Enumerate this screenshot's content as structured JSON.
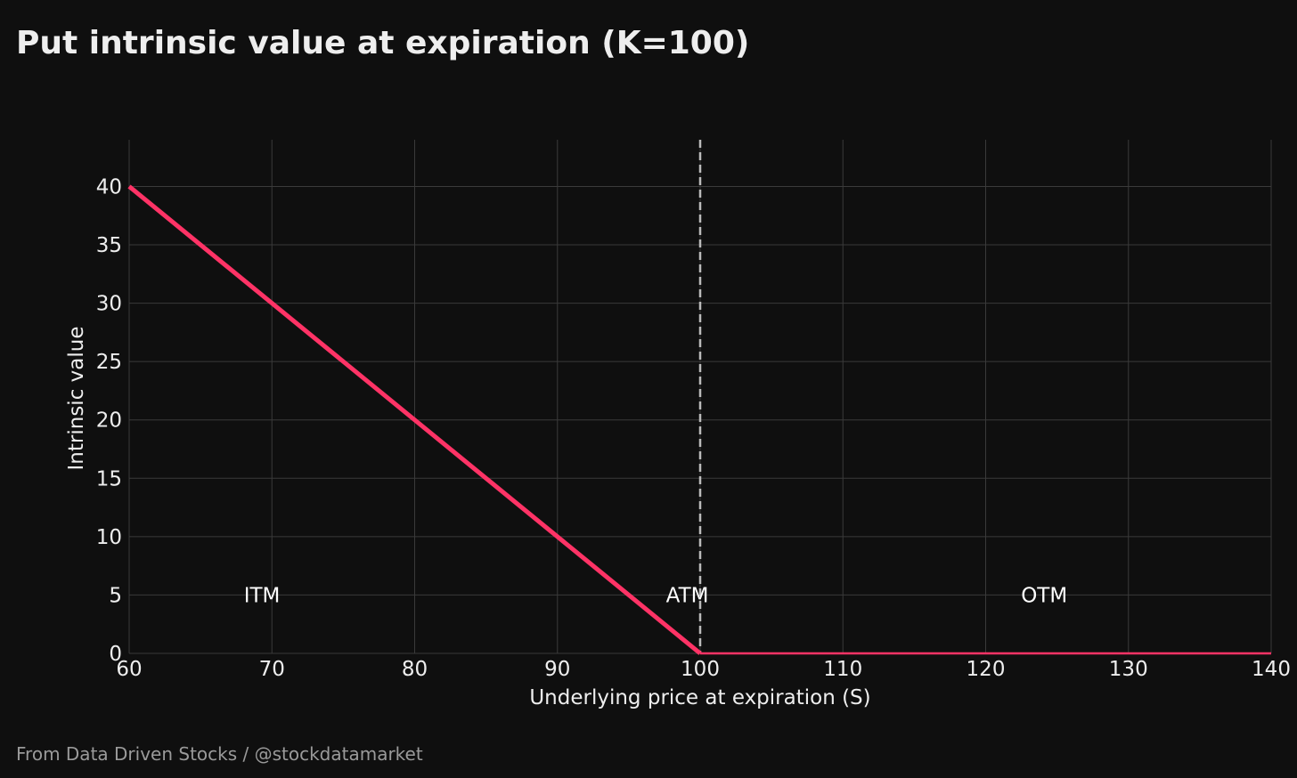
{
  "title": "Put intrinsic value at expiration (K=100)",
  "footer": "From Data Driven Stocks / @stockdatamarket",
  "chart_data": {
    "type": "line",
    "title": "Put intrinsic value at expiration (K=100)",
    "xlabel": "Underlying price at expiration (S)",
    "ylabel": "Intrinsic value",
    "xlim": [
      60,
      140
    ],
    "ylim": [
      0,
      44
    ],
    "xticks": [
      60,
      70,
      80,
      90,
      100,
      110,
      120,
      130,
      140
    ],
    "yticks": [
      0,
      5,
      10,
      15,
      20,
      25,
      30,
      35,
      40
    ],
    "grid": true,
    "series": [
      {
        "x": [
          60,
          100,
          140
        ],
        "y": [
          40,
          0,
          0
        ],
        "color": "#ff3366"
      }
    ],
    "vlines": [
      {
        "x": 100,
        "style": "dashed",
        "color": "#bbbbbb"
      }
    ],
    "annotations": [
      {
        "text": "ITM",
        "x": 69.3,
        "y": 5
      },
      {
        "text": "ATM",
        "x": 99.1,
        "y": 5
      },
      {
        "text": "OTM",
        "x": 124.1,
        "y": 5
      }
    ]
  },
  "colors": {
    "background": "#0f0f0f",
    "line": "#ff3366",
    "grid": "#3a3a3a",
    "text": "#eeeeee",
    "footer": "#9a9a9a"
  }
}
